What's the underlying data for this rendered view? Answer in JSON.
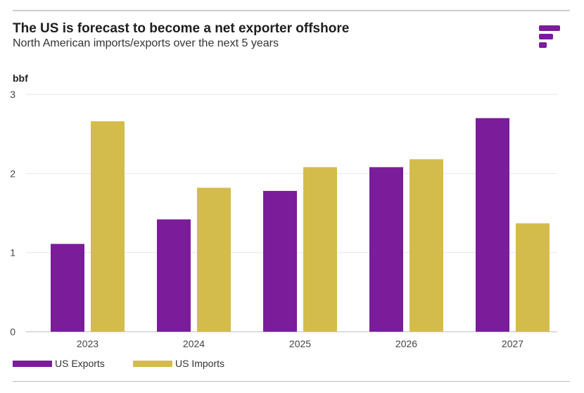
{
  "colors": {
    "exports": "#7b1c9b",
    "imports": "#d4bc4c",
    "grid": "#e6e6e6",
    "axis": "#bbbbbb"
  },
  "logo": {
    "icon": "brand-logo-icon",
    "color": "#7b1c9b"
  },
  "chart_data": {
    "type": "bar",
    "title": "The US is forecast to become a net exporter offshore",
    "subtitle": "North American imports/exports over the next 5 years",
    "ylabel": "bbf",
    "xlabel": "",
    "categories": [
      "2023",
      "2024",
      "2025",
      "2026",
      "2027"
    ],
    "series": [
      {
        "name": "US Exports",
        "values": [
          1.11,
          1.42,
          1.78,
          2.08,
          2.7
        ]
      },
      {
        "name": "US Imports",
        "values": [
          2.66,
          1.82,
          2.08,
          2.18,
          1.37
        ]
      }
    ],
    "ylim": [
      0,
      3
    ],
    "yticks": [
      "0",
      "1",
      "2",
      "3"
    ],
    "grid": true,
    "legend": "bottom-left"
  }
}
